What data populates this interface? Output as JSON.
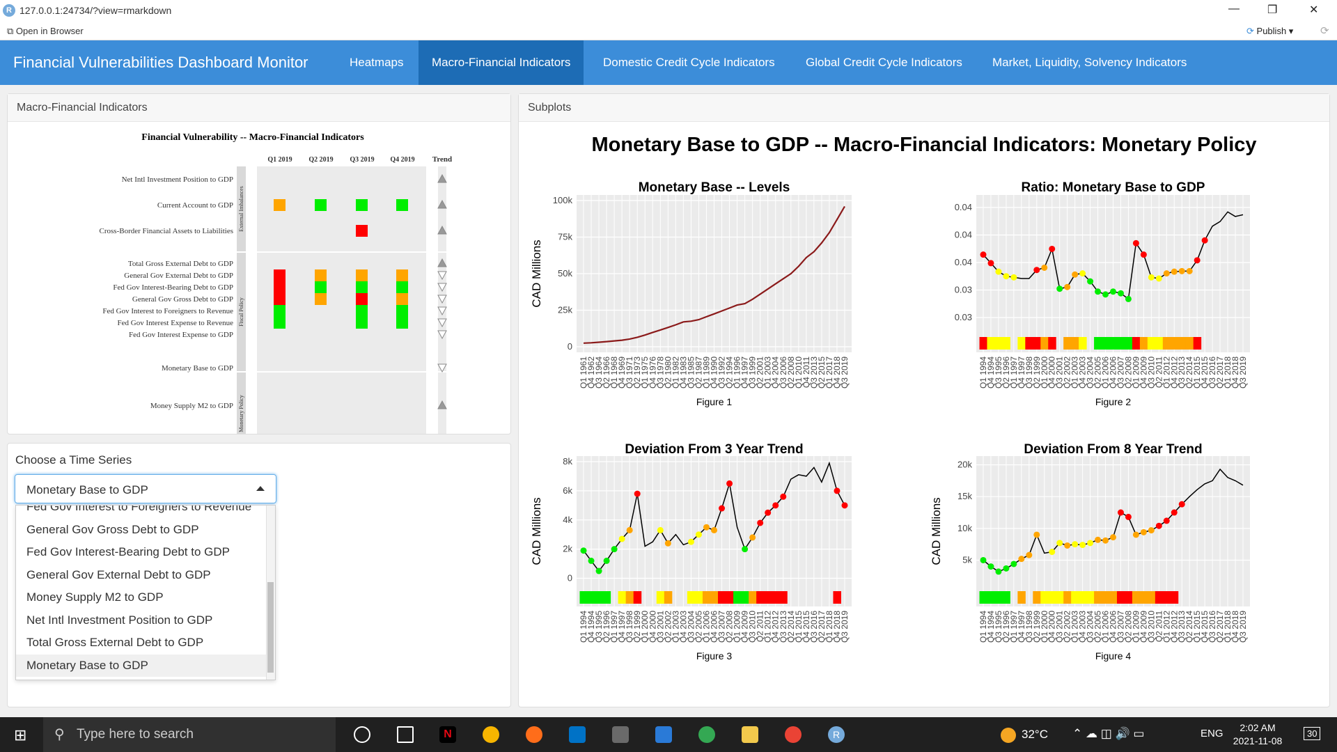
{
  "window": {
    "url": "127.0.0.1:24734/?view=rmarkdown",
    "open_in_browser": "Open in Browser",
    "publish": "Publish"
  },
  "navbar": {
    "brand": "Financial Vulnerabilities Dashboard Monitor",
    "tabs": [
      "Heatmaps",
      "Macro-Financial Indicators",
      "Domestic Credit Cycle Indicators",
      "Global Credit Cycle Indicators",
      "Market, Liquidity, Solvency Indicators"
    ],
    "active_tab": "Macro-Financial Indicators"
  },
  "macro_panel": {
    "heading": "Macro-Financial Indicators",
    "heatmap": {
      "title": "Financial Vulnerability -- Macro-Financial Indicators",
      "columns": [
        "Q1 2019",
        "Q2 2019",
        "Q3 2019",
        "Q4 2019"
      ],
      "trend_label": "Trend",
      "groups": [
        {
          "name": "External Imbalances",
          "rows": [
            {
              "label": "Net Intl Investment Position to GDP",
              "cells": [
                null,
                null,
                null,
                null
              ],
              "trend": "up"
            },
            {
              "label": "Current Account to GDP",
              "cells": [
                "orange",
                "green",
                "green",
                "green"
              ],
              "trend": "up"
            },
            {
              "label": "Cross-Border Financial Assets to Liabilities",
              "cells": [
                null,
                null,
                "red",
                null
              ],
              "trend": "up"
            }
          ]
        },
        {
          "name": "Fiscal Policy",
          "rows": [
            {
              "label": "Total Gross External Debt to GDP",
              "cells": [
                null,
                null,
                null,
                null
              ],
              "trend": "up"
            },
            {
              "label": "General Gov External Debt to GDP",
              "cells": [
                "red",
                "orange",
                "orange",
                "orange"
              ],
              "trend": "down"
            },
            {
              "label": "Fed Gov Interest-Bearing Debt to GDP",
              "cells": [
                "red",
                "green",
                "green",
                "green"
              ],
              "trend": "down"
            },
            {
              "label": "General Gov Gross Debt to GDP",
              "cells": [
                "red",
                "orange",
                "red",
                "orange"
              ],
              "trend": "down"
            },
            {
              "label": "Fed Gov Interest to Foreigners to Revenue",
              "cells": [
                "green",
                null,
                "green",
                "green"
              ],
              "trend": "down"
            },
            {
              "label": "Fed Gov Interest Expense to Revenue",
              "cells": [
                "green",
                null,
                "green",
                "green"
              ],
              "trend": "down"
            },
            {
              "label": "Fed Gov Interest Expense to GDP",
              "cells": [
                "green",
                null,
                "green",
                "green"
              ],
              "trend": "down"
            }
          ]
        },
        {
          "name": "Monetary Policy",
          "rows": [
            {
              "label": "Monetary Base to GDP",
              "cells": [
                null,
                null,
                null,
                null
              ],
              "trend": "down"
            },
            {
              "label": "Money Supply M2 to GDP",
              "cells": [
                null,
                null,
                null,
                null
              ],
              "trend": "up"
            }
          ]
        }
      ]
    }
  },
  "choose_panel": {
    "label": "Choose a Time Series",
    "selected": "Monetary Base to GDP",
    "options": [
      "Fed Gov Interest to Foreigners to Revenue",
      "General Gov Gross Debt to GDP",
      "Fed Gov Interest-Bearing Debt to GDP",
      "General Gov External Debt to GDP",
      "Money Supply M2 to GDP",
      "Net Intl Investment Position to GDP",
      "Total Gross External Debt to GDP",
      "Monetary Base to GDP"
    ]
  },
  "subplots_panel": {
    "heading": "Subplots",
    "main_title": "Monetary Base to GDP -- Macro-Financial Indicators: Monetary Policy"
  },
  "chart_data": [
    {
      "type": "line",
      "title": "Monetary Base  --  Levels",
      "caption": "Figure 1",
      "ylabel": "CAD Millions",
      "ylim": [
        0,
        100000
      ],
      "yticks": [
        "0",
        "25k",
        "50k",
        "75k",
        "100k"
      ],
      "xticks": [
        "Q1 1961",
        "Q4 1962",
        "Q3 1964",
        "Q2 1966",
        "Q1 1968",
        "Q4 1969",
        "Q3 1971",
        "Q2 1973",
        "Q1 1975",
        "Q4 1976",
        "Q3 1978",
        "Q2 1980",
        "Q1 1982",
        "Q4 1983",
        "Q3 1985",
        "Q2 1987",
        "Q1 1989",
        "Q4 1990",
        "Q3 1992",
        "Q2 1994",
        "Q1 1996",
        "Q4 1997",
        "Q3 1999",
        "Q2 2001",
        "Q1 2003",
        "Q4 2004",
        "Q3 2006",
        "Q2 2008",
        "Q1 2010",
        "Q4 2011",
        "Q3 2013",
        "Q2 2015",
        "Q1 2017",
        "Q4 2018",
        "Q3 2019"
      ],
      "line_color": "#8b1a1a",
      "values": [
        2500,
        2700,
        3100,
        3500,
        4000,
        4500,
        5300,
        6500,
        8000,
        9800,
        11500,
        13200,
        15000,
        17000,
        17500,
        18500,
        20500,
        22500,
        24500,
        26500,
        28500,
        29500,
        32500,
        36000,
        39500,
        43000,
        46500,
        50000,
        55000,
        61000,
        65000,
        71000,
        78000,
        87000,
        96000
      ]
    },
    {
      "type": "line",
      "title": "Ratio: Monetary Base to GDP",
      "caption": "Figure 2",
      "ylabel": "",
      "ylim": [
        0.025,
        0.048
      ],
      "yticks": [
        "0.03",
        "0.03",
        "0.04",
        "0.04",
        "0.04"
      ],
      "xticks": [
        "Q1 1994",
        "Q4 1994",
        "Q3 1995",
        "Q2 1996",
        "Q1 1997",
        "Q4 1997",
        "Q3 1998",
        "Q2 1999",
        "Q1 2000",
        "Q4 2000",
        "Q3 2001",
        "Q2 2002",
        "Q1 2003",
        "Q4 2003",
        "Q3 2004",
        "Q2 2005",
        "Q1 2006",
        "Q4 2006",
        "Q3 2007",
        "Q2 2008",
        "Q1 2009",
        "Q4 2009",
        "Q3 2010",
        "Q2 2011",
        "Q1 2012",
        "Q4 2012",
        "Q3 2013",
        "Q2 2014",
        "Q1 2015",
        "Q4 2015",
        "Q3 2016",
        "Q2 2017",
        "Q1 2018",
        "Q4 2018",
        "Q3 2019"
      ],
      "values": [
        0.0385,
        0.037,
        0.0355,
        0.0347,
        0.0345,
        0.0343,
        0.0343,
        0.0358,
        0.0362,
        0.0395,
        0.0325,
        0.0328,
        0.035,
        0.0352,
        0.0338,
        0.032,
        0.0315,
        0.032,
        0.0317,
        0.0307,
        0.0405,
        0.0385,
        0.0345,
        0.0343,
        0.0352,
        0.0355,
        0.0356,
        0.0356,
        0.0375,
        0.041,
        0.0435,
        0.0443,
        0.046,
        0.0452,
        0.0455
      ],
      "point_colors": [
        "red",
        "red",
        "yellow",
        "yellow",
        "yellow",
        null,
        null,
        "red",
        "orange",
        "red",
        "green",
        "orange",
        "orange",
        "yellow",
        "green",
        "green",
        "green",
        "green",
        "green",
        "green",
        "red",
        "red",
        "yellow",
        "yellow",
        "orange",
        "orange",
        "orange",
        "orange",
        "red",
        "red",
        null,
        null,
        null,
        null,
        null
      ],
      "band": [
        "red",
        "yellow",
        "yellow",
        "yellow",
        null,
        "yellow",
        "red",
        "red",
        "orange",
        "red",
        null,
        "orange",
        "orange",
        "yellow",
        null,
        "green",
        "green",
        "green",
        "green",
        "green",
        "red",
        "orange",
        "yellow",
        "yellow",
        "orange",
        "orange",
        "orange",
        "orange",
        "red",
        null,
        null,
        null,
        null,
        null,
        null
      ]
    },
    {
      "type": "line",
      "title": "Deviation From 3 Year Trend",
      "caption": "Figure 3",
      "ylabel": "CAD Millions",
      "ylim": [
        -500,
        8000
      ],
      "yticks": [
        "0",
        "2k",
        "4k",
        "6k",
        "8k"
      ],
      "xticks": [
        "Q1 1994",
        "Q4 1994",
        "Q3 1995",
        "Q2 1996",
        "Q1 1997",
        "Q4 1997",
        "Q3 1998",
        "Q2 1999",
        "Q1 2000",
        "Q4 2000",
        "Q3 2001",
        "Q2 2002",
        "Q1 2003",
        "Q4 2003",
        "Q3 2004",
        "Q2 2005",
        "Q1 2006",
        "Q4 2006",
        "Q3 2007",
        "Q2 2008",
        "Q1 2009",
        "Q4 2009",
        "Q3 2010",
        "Q2 2011",
        "Q1 2012",
        "Q4 2012",
        "Q3 2013",
        "Q2 2014",
        "Q1 2015",
        "Q4 2015",
        "Q3 2016",
        "Q2 2017",
        "Q1 2018",
        "Q4 2018",
        "Q3 2019"
      ],
      "values": [
        1900,
        1200,
        500,
        1200,
        2000,
        2700,
        3300,
        5800,
        2200,
        2500,
        3300,
        2400,
        3000,
        2300,
        2500,
        3000,
        3500,
        3300,
        4800,
        6500,
        3500,
        2000,
        2800,
        3800,
        4500,
        5000,
        5600,
        6800,
        7100,
        7000,
        7600,
        6600,
        7900,
        6000,
        5000
      ],
      "point_colors": [
        "green",
        "green",
        "green",
        "green",
        "green",
        "yellow",
        "orange",
        "red",
        null,
        null,
        "yellow",
        "orange",
        null,
        null,
        "yellow",
        "yellow",
        "orange",
        "orange",
        "red",
        "red",
        null,
        "green",
        "orange",
        "red",
        "red",
        "red",
        "red",
        null,
        null,
        null,
        null,
        null,
        null,
        "red",
        "red"
      ],
      "band": [
        "green",
        "green",
        "green",
        "green",
        null,
        "yellow",
        "orange",
        "red",
        null,
        null,
        "yellow",
        "orange",
        null,
        null,
        "yellow",
        "yellow",
        "orange",
        "orange",
        "red",
        "red",
        "green",
        "green",
        "orange",
        "red",
        "red",
        "red",
        "red",
        null,
        null,
        null,
        null,
        null,
        null,
        "red",
        null
      ]
    },
    {
      "type": "line",
      "title": "Deviation From 8 Year Trend",
      "caption": "Figure 4",
      "ylabel": "CAD Millions",
      "ylim": [
        1000,
        20500
      ],
      "yticks": [
        "5k",
        "10k",
        "15k",
        "20k"
      ],
      "xticks": [
        "Q1 1994",
        "Q4 1994",
        "Q3 1995",
        "Q2 1996",
        "Q1 1997",
        "Q4 1997",
        "Q3 1998",
        "Q2 1999",
        "Q1 2000",
        "Q4 2000",
        "Q3 2001",
        "Q2 2002",
        "Q1 2003",
        "Q4 2003",
        "Q3 2004",
        "Q2 2005",
        "Q1 2006",
        "Q4 2006",
        "Q3 2007",
        "Q2 2008",
        "Q1 2009",
        "Q4 2009",
        "Q3 2010",
        "Q2 2011",
        "Q1 2012",
        "Q4 2012",
        "Q3 2013",
        "Q2 2014",
        "Q1 2015",
        "Q4 2015",
        "Q3 2016",
        "Q2 2017",
        "Q1 2018",
        "Q4 2018",
        "Q3 2019"
      ],
      "values": [
        5000,
        4000,
        3200,
        3700,
        4400,
        5200,
        5800,
        9000,
        6100,
        6300,
        7700,
        7300,
        7500,
        7400,
        7700,
        8200,
        8100,
        8600,
        12500,
        11800,
        9000,
        9400,
        9700,
        10400,
        11200,
        12500,
        13800,
        15000,
        16100,
        17000,
        17500,
        19300,
        18000,
        17500,
        16800
      ],
      "point_colors": [
        "green",
        "green",
        "green",
        "green",
        "green",
        "orange",
        "orange",
        "orange",
        null,
        "yellow",
        "yellow",
        "orange",
        "yellow",
        "yellow",
        "yellow",
        "orange",
        "orange",
        "orange",
        "red",
        "red",
        "orange",
        "orange",
        "orange",
        "red",
        "red",
        "red",
        "red",
        null,
        null,
        null,
        null,
        null,
        null,
        null,
        null
      ],
      "band": [
        "green",
        "green",
        "green",
        "green",
        null,
        "orange",
        null,
        "orange",
        "yellow",
        "yellow",
        "yellow",
        "orange",
        "yellow",
        "yellow",
        "yellow",
        "orange",
        "orange",
        "orange",
        "red",
        "red",
        "orange",
        "orange",
        "orange",
        "red",
        "red",
        "red",
        null,
        null,
        null,
        null,
        null,
        null,
        null,
        null,
        null
      ]
    }
  ],
  "taskbar": {
    "search_placeholder": "Type here to search",
    "temperature": "32°C",
    "language": "ENG",
    "time": "2:02 AM",
    "date": "2021-11-08",
    "notifications": "30"
  },
  "colors": {
    "navbar": "#3c8dd9",
    "active_tab": "#1d6cb5",
    "red": "#ff0000",
    "orange": "#ffa500",
    "yellow": "#ffff00",
    "green": "#00ee00"
  }
}
